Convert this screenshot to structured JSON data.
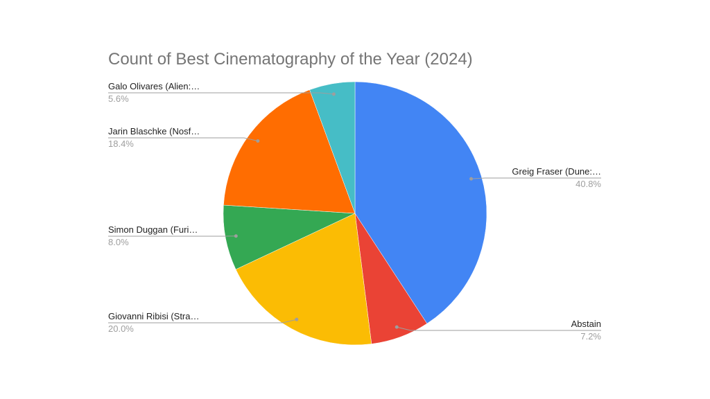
{
  "chart_data": {
    "type": "pie",
    "title": "Count of Best Cinematography of the Year (2024)",
    "slices": [
      {
        "label": "Greig Fraser (Dune:…",
        "value": 40.8,
        "pct_label": "40.8%",
        "color": "#4285F4"
      },
      {
        "label": "Abstain",
        "value": 7.2,
        "pct_label": "7.2%",
        "color": "#EA4335"
      },
      {
        "label": "Giovanni Ribisi (Stra…",
        "value": 20.0,
        "pct_label": "20.0%",
        "color": "#FBBC04"
      },
      {
        "label": "Simon Duggan (Furi…",
        "value": 8.0,
        "pct_label": "8.0%",
        "color": "#34A853"
      },
      {
        "label": "Jarin Blaschke (Nosf…",
        "value": 18.4,
        "pct_label": "18.4%",
        "color": "#FF6D01"
      },
      {
        "label": "Galo Olivares (Alien:…",
        "value": 5.6,
        "pct_label": "5.6%",
        "color": "#46BDC6"
      }
    ],
    "start_angle": "12 o'clock",
    "direction": "clockwise",
    "legend": "none"
  }
}
